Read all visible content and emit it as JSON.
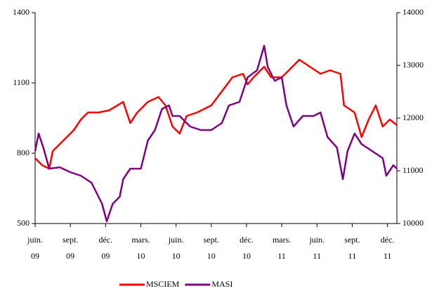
{
  "chart_data": {
    "type": "line",
    "xlim": [
      0,
      30.8
    ],
    "xticks": [
      {
        "value": 0,
        "label": "juin. 09"
      },
      {
        "value": 3,
        "label": "sept. 09"
      },
      {
        "value": 6,
        "label": "déc. 09"
      },
      {
        "value": 9,
        "label": "mars. 10"
      },
      {
        "value": 12,
        "label": "juin. 10"
      },
      {
        "value": 15,
        "label": "sept. 10"
      },
      {
        "value": 18,
        "label": "déc. 10"
      },
      {
        "value": 21,
        "label": "mars. 11"
      },
      {
        "value": 24,
        "label": "juin. 11"
      },
      {
        "value": 27,
        "label": "sept. 11"
      },
      {
        "value": 30,
        "label": "déc. 11"
      }
    ],
    "ylim": [
      500,
      1400
    ],
    "yticks": [
      500,
      800,
      1100,
      1400
    ],
    "y2lim": [
      10000,
      14000
    ],
    "y2ticks": [
      10000,
      11000,
      12000,
      13000,
      14000
    ],
    "legend": "bottom",
    "series": [
      {
        "name": "MSCIEM",
        "color": "#ff0000",
        "x": [
          0,
          0.6,
          1.2,
          1.5,
          2.1,
          2.7,
          3.3,
          3.9,
          4.5,
          5.4,
          6.3,
          7.2,
          7.5,
          8.1,
          8.7,
          9.6,
          10.5,
          11.1,
          11.7,
          12.3,
          12.9,
          13.8,
          15.0,
          15.9,
          16.8,
          17.7,
          18.1,
          18.6,
          19.5,
          20.1,
          21.0,
          21.6,
          22.5,
          23.4,
          24.3,
          25.1,
          26.0,
          26.3,
          27.2,
          27.8,
          28.4,
          29.0,
          29.6,
          30.2,
          30.8
        ],
        "values": [
          779,
          749,
          734,
          809,
          839,
          869,
          899,
          944,
          974,
          974,
          983,
          1010,
          1019,
          929,
          974,
          1019,
          1040,
          1004,
          914,
          884,
          959,
          974,
          1004,
          1064,
          1124,
          1139,
          1094,
          1124,
          1169,
          1124,
          1124,
          1154,
          1199,
          1169,
          1139,
          1154,
          1139,
          1004,
          974,
          869,
          944,
          1004,
          914,
          944,
          920
        ]
      },
      {
        "name": "MASI",
        "color": "#800080",
        "axis": "y2",
        "x": [
          0,
          0.3,
          0.7,
          1.2,
          2.1,
          3.0,
          3.9,
          4.8,
          5.7,
          6.1,
          6.6,
          7.2,
          7.5,
          8.1,
          9.0,
          9.6,
          10.2,
          10.8,
          11.4,
          11.7,
          12.3,
          13.2,
          14.1,
          15.0,
          15.9,
          16.5,
          17.4,
          18.1,
          18.9,
          19.5,
          19.8,
          20.4,
          21.0,
          21.4,
          22.0,
          22.8,
          23.7,
          24.3,
          24.9,
          25.7,
          26.2,
          26.6,
          27.2,
          27.8,
          28.7,
          29.6,
          29.9,
          30.5,
          30.8
        ],
        "values": [
          11373,
          11707,
          11440,
          11040,
          11067,
          10973,
          10907,
          10773,
          10373,
          10040,
          10373,
          10507,
          10840,
          11040,
          11040,
          11573,
          11773,
          12173,
          12240,
          12040,
          12040,
          11840,
          11773,
          11773,
          11907,
          12240,
          12307,
          12773,
          12907,
          13373,
          12973,
          12707,
          12773,
          12240,
          11840,
          12040,
          12040,
          12107,
          11640,
          11440,
          10840,
          11373,
          11707,
          11507,
          11373,
          11240,
          10907,
          11107,
          11040
        ]
      }
    ]
  }
}
